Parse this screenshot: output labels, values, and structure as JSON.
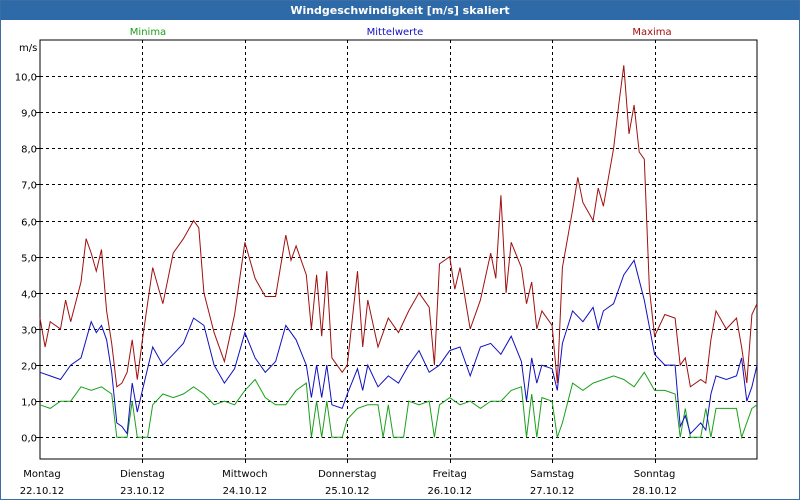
{
  "window": {
    "title": "Windgeschwindigkeit [m/s] skaliert"
  },
  "chart_data": {
    "type": "line",
    "title": "Windgeschwindigkeit [m/s] skaliert",
    "ylabel": "m/s",
    "ylim": [
      -0.6,
      11.0
    ],
    "yticks": [
      0,
      1,
      2,
      3,
      4,
      5,
      6,
      7,
      8,
      9,
      10
    ],
    "ytick_labels": [
      "0,0",
      "1,0",
      "2,0",
      "3,0",
      "4,0",
      "5,0",
      "6,0",
      "7,0",
      "8,0",
      "9,0",
      "10,0"
    ],
    "xlim": [
      0,
      7
    ],
    "days": [
      {
        "day": "Montag",
        "date": "22.10.12"
      },
      {
        "day": "Dienstag",
        "date": "23.10.12"
      },
      {
        "day": "Mittwoch",
        "date": "24.10.12"
      },
      {
        "day": "Donnerstag",
        "date": "25.10.12"
      },
      {
        "day": "Freitag",
        "date": "26.10.12"
      },
      {
        "day": "Samstag",
        "date": "27.10.12"
      },
      {
        "day": "Sonntag",
        "date": "28.10.12"
      }
    ],
    "grid": true,
    "legend_position": "top",
    "series": [
      {
        "name": "Minima",
        "color": "#1aa01a",
        "points": [
          [
            0.0,
            0.9
          ],
          [
            0.1,
            0.8
          ],
          [
            0.2,
            1.0
          ],
          [
            0.3,
            1.0
          ],
          [
            0.4,
            1.4
          ],
          [
            0.5,
            1.3
          ],
          [
            0.6,
            1.4
          ],
          [
            0.7,
            1.2
          ],
          [
            0.75,
            0.0
          ],
          [
            0.85,
            0.0
          ],
          [
            0.9,
            1.0
          ],
          [
            0.95,
            0.0
          ],
          [
            1.05,
            0.0
          ],
          [
            1.1,
            0.9
          ],
          [
            1.2,
            1.2
          ],
          [
            1.3,
            1.1
          ],
          [
            1.4,
            1.2
          ],
          [
            1.5,
            1.4
          ],
          [
            1.6,
            1.2
          ],
          [
            1.7,
            0.9
          ],
          [
            1.8,
            1.0
          ],
          [
            1.9,
            0.9
          ],
          [
            2.0,
            1.3
          ],
          [
            2.1,
            1.6
          ],
          [
            2.2,
            1.1
          ],
          [
            2.3,
            0.9
          ],
          [
            2.4,
            0.9
          ],
          [
            2.5,
            1.3
          ],
          [
            2.6,
            1.5
          ],
          [
            2.65,
            0.0
          ],
          [
            2.7,
            1.0
          ],
          [
            2.75,
            0.0
          ],
          [
            2.8,
            1.0
          ],
          [
            2.85,
            0.0
          ],
          [
            2.95,
            0.0
          ],
          [
            3.0,
            0.5
          ],
          [
            3.1,
            0.8
          ],
          [
            3.2,
            0.9
          ],
          [
            3.3,
            0.9
          ],
          [
            3.35,
            0.0
          ],
          [
            3.4,
            0.9
          ],
          [
            3.45,
            0.0
          ],
          [
            3.55,
            0.0
          ],
          [
            3.6,
            1.0
          ],
          [
            3.7,
            0.9
          ],
          [
            3.8,
            1.0
          ],
          [
            3.85,
            0.0
          ],
          [
            3.9,
            0.9
          ],
          [
            4.0,
            1.1
          ],
          [
            4.1,
            0.9
          ],
          [
            4.2,
            1.0
          ],
          [
            4.3,
            0.8
          ],
          [
            4.4,
            1.0
          ],
          [
            4.5,
            1.0
          ],
          [
            4.6,
            1.3
          ],
          [
            4.7,
            1.4
          ],
          [
            4.75,
            0.0
          ],
          [
            4.8,
            1.2
          ],
          [
            4.85,
            0.0
          ],
          [
            4.9,
            1.1
          ],
          [
            5.0,
            1.0
          ],
          [
            5.05,
            0.0
          ],
          [
            5.1,
            0.4
          ],
          [
            5.2,
            1.5
          ],
          [
            5.3,
            1.3
          ],
          [
            5.4,
            1.5
          ],
          [
            5.5,
            1.6
          ],
          [
            5.6,
            1.7
          ],
          [
            5.7,
            1.6
          ],
          [
            5.8,
            1.4
          ],
          [
            5.9,
            1.8
          ],
          [
            6.0,
            1.3
          ],
          [
            6.1,
            1.3
          ],
          [
            6.2,
            1.2
          ],
          [
            6.25,
            0.0
          ],
          [
            6.3,
            0.8
          ],
          [
            6.35,
            0.0
          ],
          [
            6.45,
            0.0
          ],
          [
            6.5,
            0.8
          ],
          [
            6.55,
            0.0
          ],
          [
            6.6,
            0.8
          ],
          [
            6.7,
            0.8
          ],
          [
            6.8,
            0.8
          ],
          [
            6.85,
            0.0
          ],
          [
            6.95,
            0.8
          ],
          [
            7.0,
            0.9
          ]
        ]
      },
      {
        "name": "Mittelwerte",
        "color": "#1010c0",
        "points": [
          [
            0.0,
            1.8
          ],
          [
            0.1,
            1.7
          ],
          [
            0.2,
            1.6
          ],
          [
            0.3,
            2.0
          ],
          [
            0.4,
            2.2
          ],
          [
            0.45,
            2.7
          ],
          [
            0.5,
            3.2
          ],
          [
            0.55,
            2.9
          ],
          [
            0.6,
            3.1
          ],
          [
            0.65,
            2.7
          ],
          [
            0.7,
            1.8
          ],
          [
            0.75,
            0.4
          ],
          [
            0.8,
            0.3
          ],
          [
            0.85,
            0.1
          ],
          [
            0.9,
            1.5
          ],
          [
            0.95,
            0.7
          ],
          [
            1.0,
            1.3
          ],
          [
            1.1,
            2.5
          ],
          [
            1.2,
            2.0
          ],
          [
            1.3,
            2.3
          ],
          [
            1.4,
            2.6
          ],
          [
            1.5,
            3.3
          ],
          [
            1.6,
            3.1
          ],
          [
            1.7,
            2.0
          ],
          [
            1.8,
            1.5
          ],
          [
            1.9,
            1.9
          ],
          [
            2.0,
            2.9
          ],
          [
            2.1,
            2.2
          ],
          [
            2.2,
            1.8
          ],
          [
            2.3,
            2.1
          ],
          [
            2.4,
            3.1
          ],
          [
            2.5,
            2.7
          ],
          [
            2.6,
            2.0
          ],
          [
            2.65,
            1.1
          ],
          [
            2.7,
            2.0
          ],
          [
            2.75,
            1.1
          ],
          [
            2.8,
            2.0
          ],
          [
            2.85,
            0.9
          ],
          [
            2.95,
            0.8
          ],
          [
            3.0,
            1.2
          ],
          [
            3.1,
            1.9
          ],
          [
            3.15,
            1.3
          ],
          [
            3.2,
            2.0
          ],
          [
            3.3,
            1.4
          ],
          [
            3.4,
            1.7
          ],
          [
            3.5,
            1.5
          ],
          [
            3.6,
            2.0
          ],
          [
            3.7,
            2.4
          ],
          [
            3.8,
            1.8
          ],
          [
            3.9,
            2.0
          ],
          [
            4.0,
            2.4
          ],
          [
            4.1,
            2.5
          ],
          [
            4.2,
            1.7
          ],
          [
            4.3,
            2.5
          ],
          [
            4.4,
            2.6
          ],
          [
            4.5,
            2.3
          ],
          [
            4.6,
            2.8
          ],
          [
            4.7,
            2.1
          ],
          [
            4.75,
            1.0
          ],
          [
            4.8,
            2.2
          ],
          [
            4.85,
            1.5
          ],
          [
            4.9,
            2.0
          ],
          [
            5.0,
            1.9
          ],
          [
            5.05,
            1.3
          ],
          [
            5.1,
            2.6
          ],
          [
            5.2,
            3.5
          ],
          [
            5.3,
            3.2
          ],
          [
            5.4,
            3.6
          ],
          [
            5.45,
            3.0
          ],
          [
            5.5,
            3.5
          ],
          [
            5.6,
            3.7
          ],
          [
            5.7,
            4.5
          ],
          [
            5.8,
            4.9
          ],
          [
            5.9,
            3.8
          ],
          [
            6.0,
            2.3
          ],
          [
            6.1,
            2.0
          ],
          [
            6.2,
            2.0
          ],
          [
            6.25,
            0.3
          ],
          [
            6.3,
            0.6
          ],
          [
            6.35,
            0.1
          ],
          [
            6.45,
            0.4
          ],
          [
            6.5,
            0.2
          ],
          [
            6.55,
            1.2
          ],
          [
            6.6,
            1.7
          ],
          [
            6.7,
            1.6
          ],
          [
            6.8,
            1.7
          ],
          [
            6.85,
            2.2
          ],
          [
            6.9,
            1.0
          ],
          [
            6.95,
            1.4
          ],
          [
            7.0,
            2.0
          ]
        ]
      },
      {
        "name": "Maxima",
        "color": "#a01010",
        "points": [
          [
            0.0,
            3.3
          ],
          [
            0.05,
            2.5
          ],
          [
            0.1,
            3.2
          ],
          [
            0.2,
            3.0
          ],
          [
            0.25,
            3.8
          ],
          [
            0.3,
            3.2
          ],
          [
            0.4,
            4.3
          ],
          [
            0.45,
            5.5
          ],
          [
            0.5,
            5.1
          ],
          [
            0.55,
            4.6
          ],
          [
            0.6,
            5.2
          ],
          [
            0.65,
            3.5
          ],
          [
            0.7,
            2.6
          ],
          [
            0.75,
            1.4
          ],
          [
            0.8,
            1.5
          ],
          [
            0.85,
            1.8
          ],
          [
            0.9,
            2.7
          ],
          [
            0.95,
            1.6
          ],
          [
            1.0,
            2.7
          ],
          [
            1.1,
            4.7
          ],
          [
            1.2,
            3.7
          ],
          [
            1.3,
            5.1
          ],
          [
            1.4,
            5.5
          ],
          [
            1.5,
            6.0
          ],
          [
            1.55,
            5.8
          ],
          [
            1.6,
            4.0
          ],
          [
            1.7,
            2.9
          ],
          [
            1.8,
            2.1
          ],
          [
            1.9,
            3.4
          ],
          [
            2.0,
            5.4
          ],
          [
            2.1,
            4.4
          ],
          [
            2.2,
            3.9
          ],
          [
            2.3,
            3.9
          ],
          [
            2.4,
            5.6
          ],
          [
            2.45,
            4.9
          ],
          [
            2.5,
            5.3
          ],
          [
            2.6,
            4.5
          ],
          [
            2.65,
            3.0
          ],
          [
            2.7,
            4.5
          ],
          [
            2.75,
            2.8
          ],
          [
            2.8,
            4.6
          ],
          [
            2.85,
            2.2
          ],
          [
            2.95,
            1.8
          ],
          [
            3.0,
            2.0
          ],
          [
            3.1,
            4.6
          ],
          [
            3.15,
            2.5
          ],
          [
            3.2,
            3.8
          ],
          [
            3.3,
            2.5
          ],
          [
            3.4,
            3.3
          ],
          [
            3.5,
            2.9
          ],
          [
            3.6,
            3.5
          ],
          [
            3.7,
            4.0
          ],
          [
            3.8,
            3.6
          ],
          [
            3.85,
            2.0
          ],
          [
            3.9,
            4.8
          ],
          [
            4.0,
            5.0
          ],
          [
            4.05,
            4.1
          ],
          [
            4.1,
            4.7
          ],
          [
            4.2,
            3.0
          ],
          [
            4.3,
            3.8
          ],
          [
            4.4,
            5.1
          ],
          [
            4.45,
            4.4
          ],
          [
            4.5,
            6.7
          ],
          [
            4.55,
            4.0
          ],
          [
            4.6,
            5.4
          ],
          [
            4.7,
            4.7
          ],
          [
            4.75,
            3.7
          ],
          [
            4.8,
            4.3
          ],
          [
            4.85,
            3.0
          ],
          [
            4.9,
            3.5
          ],
          [
            5.0,
            3.1
          ],
          [
            5.05,
            1.5
          ],
          [
            5.1,
            4.7
          ],
          [
            5.2,
            6.3
          ],
          [
            5.25,
            7.2
          ],
          [
            5.3,
            6.5
          ],
          [
            5.4,
            6.0
          ],
          [
            5.45,
            6.9
          ],
          [
            5.5,
            6.4
          ],
          [
            5.6,
            8.0
          ],
          [
            5.65,
            9.2
          ],
          [
            5.7,
            10.3
          ],
          [
            5.75,
            8.4
          ],
          [
            5.8,
            9.2
          ],
          [
            5.85,
            7.9
          ],
          [
            5.9,
            7.7
          ],
          [
            5.95,
            4.1
          ],
          [
            6.0,
            2.8
          ],
          [
            6.1,
            3.4
          ],
          [
            6.2,
            3.3
          ],
          [
            6.25,
            2.0
          ],
          [
            6.3,
            2.2
          ],
          [
            6.35,
            1.4
          ],
          [
            6.45,
            1.6
          ],
          [
            6.5,
            1.5
          ],
          [
            6.55,
            2.7
          ],
          [
            6.6,
            3.5
          ],
          [
            6.7,
            3.0
          ],
          [
            6.8,
            3.3
          ],
          [
            6.85,
            2.5
          ],
          [
            6.9,
            1.5
          ],
          [
            6.95,
            3.4
          ],
          [
            7.0,
            3.7
          ]
        ]
      }
    ]
  }
}
